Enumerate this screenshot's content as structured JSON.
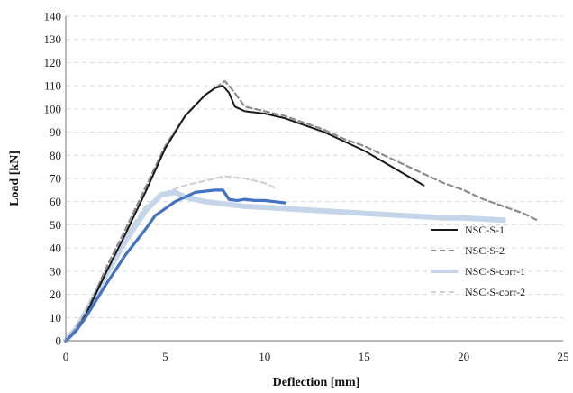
{
  "chart_data": {
    "type": "line",
    "xlabel": "Deflection [mm]",
    "ylabel": "Load [kN]",
    "xlim": [
      0,
      25
    ],
    "ylim": [
      0,
      140
    ],
    "xticks": [
      "0",
      "5",
      "10",
      "15",
      "20",
      "25"
    ],
    "yticks": [
      "0",
      "10",
      "20",
      "30",
      "40",
      "50",
      "60",
      "70",
      "80",
      "90",
      "100",
      "110",
      "120",
      "130",
      "140"
    ],
    "grid": "horizontal dashed",
    "legend_position": "lower-right",
    "series": [
      {
        "name": "NSC-S-1",
        "color": "#1a1a1a",
        "dash": "solid",
        "x": [
          0,
          0.5,
          1,
          1.5,
          2,
          3,
          4,
          5,
          6,
          7,
          7.5,
          7.9,
          8.2,
          8.5,
          9,
          10,
          11,
          12,
          13,
          14,
          15,
          16,
          17,
          18
        ],
        "y": [
          0,
          4,
          11,
          20,
          29,
          46,
          64,
          83,
          97,
          106,
          109,
          110,
          107,
          101,
          99,
          98,
          96,
          93,
          90,
          86,
          82,
          77,
          72,
          67
        ]
      },
      {
        "name": "NSC-S-2",
        "color": "#8c8c8c",
        "dash": "dashed",
        "x": [
          0,
          0.5,
          1,
          1.5,
          2,
          3,
          4,
          5,
          6,
          7,
          7.5,
          8,
          8.4,
          9,
          10,
          11,
          12,
          13,
          14,
          15,
          16,
          17,
          18,
          19,
          20,
          21,
          22,
          23,
          23.7
        ],
        "y": [
          0,
          5,
          12,
          21,
          31,
          48,
          66,
          84,
          97,
          106,
          109,
          112,
          108,
          101,
          99,
          97,
          94,
          91,
          87,
          84,
          80,
          76,
          72,
          68,
          65,
          61,
          58,
          55,
          52
        ]
      },
      {
        "name": "NSC-S-corr-1",
        "color": "#c5d5ea",
        "dash": "solid",
        "x": [
          0,
          0.5,
          1,
          1.5,
          2,
          3,
          4,
          4.8,
          5.5,
          6,
          7,
          8,
          9,
          10,
          11,
          12,
          13,
          14,
          15,
          16,
          17,
          18,
          19,
          20,
          21,
          22
        ],
        "y": [
          0,
          5,
          12,
          20,
          28,
          43,
          56,
          63,
          64,
          62,
          60,
          59,
          58,
          57.5,
          57,
          56.5,
          56,
          55.5,
          55,
          54.5,
          54,
          53.5,
          53,
          53,
          52.5,
          52
        ]
      },
      {
        "name": "NSC-S-corr-2",
        "color": "#d0d0d0",
        "dash": "dashed",
        "x": [
          0,
          0.5,
          1,
          1.5,
          2,
          3,
          4,
          5,
          6,
          7,
          8,
          9,
          10,
          10.5
        ],
        "y": [
          0,
          5,
          12,
          20,
          29,
          45,
          58,
          64,
          67,
          69,
          71,
          70,
          68,
          66
        ]
      },
      {
        "name": "",
        "color": "#4472c4",
        "dash": "solid",
        "x": [
          0,
          0.5,
          1,
          1.5,
          2,
          3,
          4,
          4.5,
          5,
          5.5,
          6,
          6.5,
          7,
          7.5,
          7.9,
          8.2,
          8.6,
          9,
          9.5,
          10,
          10.5,
          11
        ],
        "y": [
          0,
          4,
          10,
          17,
          24,
          37,
          48,
          54,
          57,
          60,
          62,
          64,
          64.5,
          65,
          65,
          61,
          60.5,
          61,
          60.5,
          60.5,
          60,
          59.5
        ]
      }
    ]
  }
}
